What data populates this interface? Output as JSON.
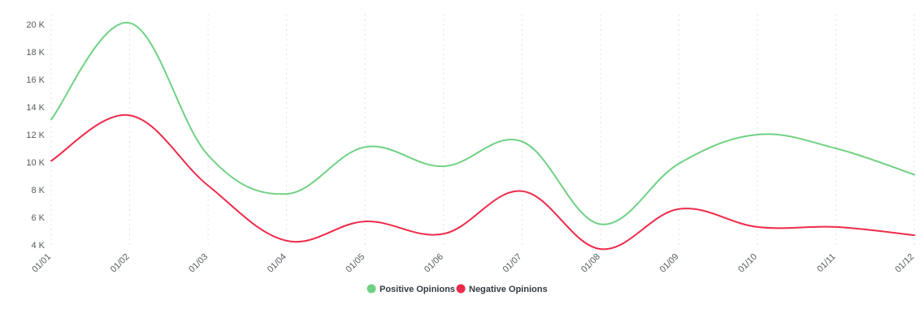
{
  "chart_data": {
    "type": "line",
    "categories": [
      "01/01",
      "01/02",
      "01/03",
      "01/04",
      "01/05",
      "01/06",
      "01/07",
      "01/08",
      "01/09",
      "01/10",
      "01/11",
      "01/12"
    ],
    "series": [
      {
        "name": "Positive Opinions",
        "color": "#6fd184",
        "values": [
          13100,
          20100,
          10500,
          7700,
          11100,
          9700,
          11500,
          5500,
          9900,
          12000,
          11000,
          9100
        ]
      },
      {
        "name": "Negative Opinions",
        "color": "#ee2a4a",
        "values": [
          10100,
          13400,
          8300,
          4300,
          5700,
          4800,
          7900,
          3700,
          6600,
          5300,
          5300,
          4700
        ]
      }
    ],
    "y_ticks": [
      {
        "value": 4000,
        "label": "4 K"
      },
      {
        "value": 6000,
        "label": "6 K"
      },
      {
        "value": 8000,
        "label": "8 K"
      },
      {
        "value": 10000,
        "label": "10 K"
      },
      {
        "value": 12000,
        "label": "12 K"
      },
      {
        "value": 14000,
        "label": "14 K"
      },
      {
        "value": 16000,
        "label": "16 K"
      },
      {
        "value": 18000,
        "label": "18 K"
      },
      {
        "value": 20000,
        "label": "20 K"
      }
    ],
    "ylim": [
      4000,
      20000
    ],
    "title": "",
    "xlabel": "",
    "ylabel": "",
    "grid": "vertical-dotted",
    "legend_position": "bottom-center"
  }
}
